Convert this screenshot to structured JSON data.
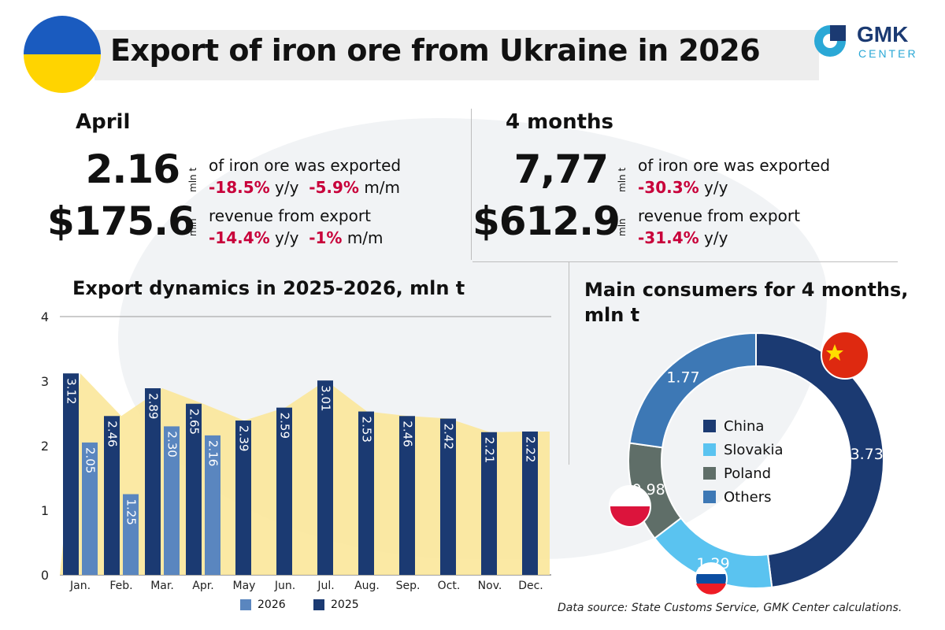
{
  "header": {
    "title": "Export of iron ore from Ukraine in 2026",
    "logo_main": "GMK",
    "logo_sub": "CENTER"
  },
  "april": {
    "period": "April",
    "volume": "2.16",
    "volume_unit": "mln t",
    "volume_desc": "of iron ore was exported",
    "volume_yy": "-18.5%",
    "volume_yy_label": "y/y",
    "volume_mm": "-5.9%",
    "volume_mm_label": "m/m",
    "revenue": "$175.6",
    "revenue_unit": "mln",
    "revenue_desc": "revenue from export",
    "revenue_yy": "-14.4%",
    "revenue_yy_label": "y/y",
    "revenue_mm": "-1%",
    "revenue_mm_label": "m/m"
  },
  "four_months": {
    "period": "4 months",
    "volume": "7,77",
    "volume_unit": "mln t",
    "volume_desc": "of iron ore was exported",
    "volume_yy": "-30.3%",
    "volume_yy_label": "y/y",
    "revenue": "$612.9",
    "revenue_unit": "mln",
    "revenue_desc": "revenue from export",
    "revenue_yy": "-31.4%",
    "revenue_yy_label": "y/y"
  },
  "source": "Data source: State Customs Service, GMK Center calculations.",
  "colors": {
    "series_2025": "#1b3a72",
    "series_2026": "#5a86bf",
    "area_fill": "#fbe79a",
    "negative": "#c8003a",
    "china": "#1b3a72",
    "slovakia": "#5ac3f0",
    "poland": "#5f6e68",
    "others": "#3d78b5"
  },
  "chart_data": [
    {
      "type": "bar",
      "title": "Export dynamics in 2025-2026, mln t",
      "categories": [
        "Jan.",
        "Feb.",
        "Mar.",
        "Apr.",
        "May",
        "Jun.",
        "Jul.",
        "Aug.",
        "Sep.",
        "Oct.",
        "Nov.",
        "Dec."
      ],
      "series": [
        {
          "name": "2026",
          "values": [
            2.05,
            1.25,
            2.3,
            2.16,
            null,
            null,
            null,
            null,
            null,
            null,
            null,
            null
          ]
        },
        {
          "name": "2025",
          "values": [
            3.12,
            2.46,
            2.89,
            2.65,
            2.39,
            2.59,
            3.01,
            2.53,
            2.46,
            2.42,
            2.21,
            2.22
          ]
        }
      ],
      "ylim": [
        0,
        4
      ],
      "yticks": [
        0,
        1,
        2,
        3,
        4
      ],
      "legend": "bottom"
    },
    {
      "type": "pie",
      "title": "Main consumers for 4 months, mln t",
      "labels": [
        "China",
        "Slovakia",
        "Poland",
        "Others"
      ],
      "values": [
        3.73,
        1.29,
        0.98,
        1.77
      ],
      "legend": "center"
    }
  ]
}
